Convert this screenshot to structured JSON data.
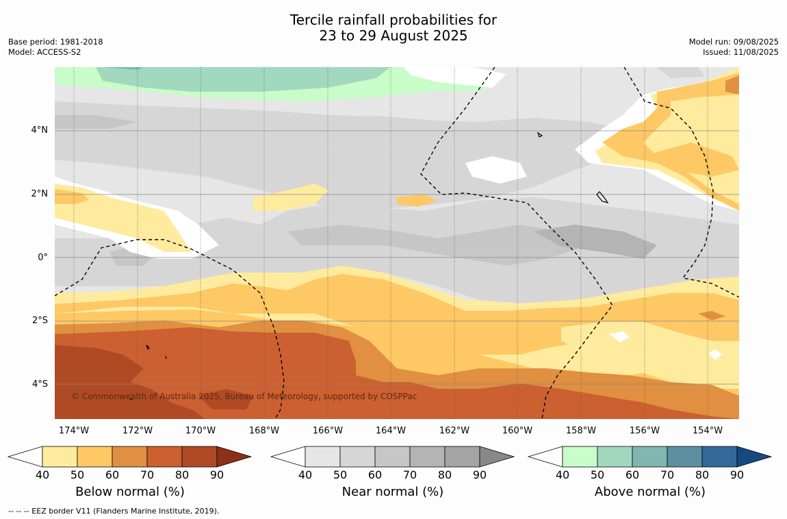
{
  "title": {
    "line1": "Tercile rainfall probabilities for",
    "line2": "23 to 29 August 2025"
  },
  "meta_left": {
    "base_period": "Base period: 1981-2018",
    "model": "Model: ACCESS-S2"
  },
  "meta_right": {
    "model_run": "Model run: 09/08/2025",
    "issued": "Issued: 11/08/2025"
  },
  "map": {
    "lat_labels": [
      "4°N",
      "2°N",
      "0°",
      "2°S",
      "4°S"
    ],
    "lon_labels": [
      "174°W",
      "172°W",
      "170°W",
      "168°W",
      "166°W",
      "164°W",
      "162°W",
      "160°W",
      "158°W",
      "156°W",
      "154°W"
    ],
    "copyright": "© Commonwealth of Australia 2025, Bureau of Meteorology, supported by COSPPac"
  },
  "colorbars": [
    {
      "title": "Below normal (%)",
      "ticks": [
        "40",
        "50",
        "60",
        "70",
        "80",
        "90"
      ],
      "colors": [
        "#ffffff",
        "#ffeb9e",
        "#fec865",
        "#e09040",
        "#cc6030",
        "#b04a25",
        "#8e2f18"
      ]
    },
    {
      "title": "Near normal (%)",
      "ticks": [
        "40",
        "50",
        "60",
        "70",
        "80",
        "90"
      ],
      "colors": [
        "#ffffff",
        "#e6e6e6",
        "#d6d6d6",
        "#c6c6c6",
        "#b4b4b4",
        "#a4a4a4",
        "#888888"
      ]
    },
    {
      "title": "Above normal (%)",
      "ticks": [
        "40",
        "50",
        "60",
        "70",
        "80",
        "90"
      ],
      "colors": [
        "#ffffff",
        "#c8fcc8",
        "#a2d8be",
        "#80b6b0",
        "#5c90a0",
        "#336898",
        "#154a80"
      ]
    }
  ],
  "footer": "-- -- -- EEZ border V11 (Flanders Marine Institute, 2019)."
}
